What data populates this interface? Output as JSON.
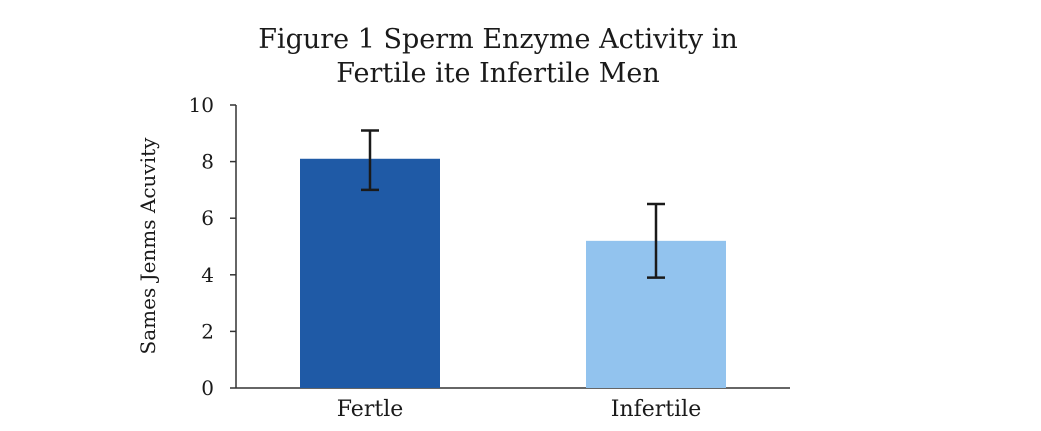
{
  "chart_data": {
    "type": "bar",
    "title_lines": [
      "Figure 1 Sperm Enzyme Activity in",
      "Fertile ite Infertile Men"
    ],
    "xlabel": "",
    "ylabel": "Sames Jenms Acuvity",
    "categories": [
      "Fertle",
      "Infertile"
    ],
    "values": [
      8.1,
      5.2
    ],
    "error": [
      [
        7.0,
        9.1
      ],
      [
        3.9,
        6.5
      ]
    ],
    "colors": [
      "#1f5aa6",
      "#92c3ee"
    ],
    "ylim": [
      0,
      10
    ],
    "yticks": [
      0,
      2,
      4,
      6,
      8,
      10
    ],
    "grid": false,
    "legend": "none"
  }
}
